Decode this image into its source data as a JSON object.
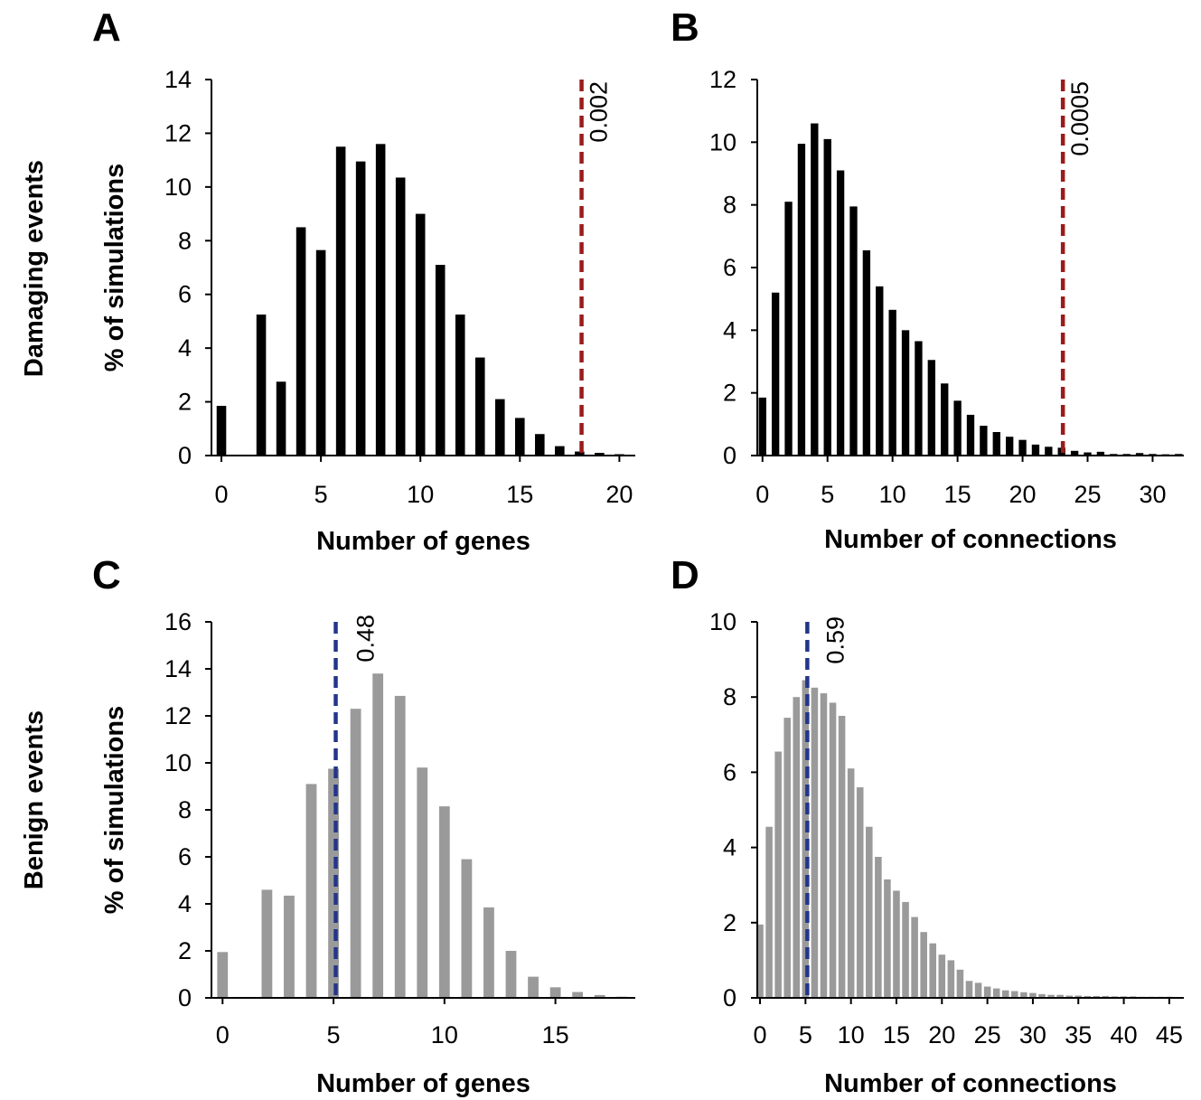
{
  "row_labels": [
    "Damaging events",
    "Benign events"
  ],
  "chart_data": [
    {
      "panel": "A",
      "type": "bar",
      "xlabel": "Number of genes",
      "ylabel": "% of simulations",
      "xlim": [
        -0.5,
        20.8
      ],
      "ylim": [
        0,
        14
      ],
      "xticks": [
        0,
        5,
        10,
        15,
        20
      ],
      "yticks": [
        0,
        2,
        4,
        6,
        8,
        10,
        12,
        14
      ],
      "grid": false,
      "bar_color": "#000000",
      "x": [
        0,
        1,
        2,
        3,
        4,
        5,
        6,
        7,
        8,
        9,
        10,
        11,
        12,
        13,
        14,
        15,
        16,
        17,
        18,
        19,
        20
      ],
      "values": [
        1.85,
        0,
        5.25,
        2.75,
        8.5,
        7.65,
        11.5,
        10.95,
        11.6,
        10.35,
        9.0,
        7.1,
        5.25,
        3.65,
        2.1,
        1.4,
        0.8,
        0.35,
        0.15,
        0.1,
        0.05
      ],
      "threshold": {
        "x": 18.1,
        "label": "0.002",
        "color": "#9b1b1b"
      }
    },
    {
      "panel": "B",
      "type": "bar",
      "xlabel": "Number of connections",
      "ylabel": "",
      "xlim": [
        -0.4,
        32.4
      ],
      "ylim": [
        0,
        12
      ],
      "xticks": [
        0,
        5,
        10,
        15,
        20,
        25,
        30
      ],
      "yticks": [
        0,
        2,
        4,
        6,
        8,
        10,
        12
      ],
      "grid": false,
      "bar_color": "#000000",
      "x": [
        0,
        1,
        2,
        3,
        4,
        5,
        6,
        7,
        8,
        9,
        10,
        11,
        12,
        13,
        14,
        15,
        16,
        17,
        18,
        19,
        20,
        21,
        22,
        23,
        24,
        25,
        26,
        27,
        28,
        29,
        30,
        31,
        32
      ],
      "values": [
        1.85,
        5.2,
        8.1,
        9.95,
        10.6,
        10.1,
        9.1,
        7.95,
        6.55,
        5.4,
        4.65,
        4.0,
        3.65,
        3.05,
        2.3,
        1.75,
        1.3,
        0.95,
        0.75,
        0.6,
        0.5,
        0.35,
        0.28,
        0.25,
        0.15,
        0.1,
        0.12,
        0.05,
        0.05,
        0.08,
        0.05,
        0.04,
        0.05
      ],
      "threshold": {
        "x": 23.1,
        "label": "0.0005",
        "color": "#9b1b1b"
      }
    },
    {
      "panel": "C",
      "type": "bar",
      "xlabel": "Number of genes",
      "ylabel": "% of simulations",
      "xlim": [
        -0.5,
        18.6
      ],
      "ylim": [
        0,
        16
      ],
      "xticks": [
        0,
        5,
        10,
        15
      ],
      "yticks": [
        0,
        2,
        4,
        6,
        8,
        10,
        12,
        14,
        16
      ],
      "grid": false,
      "bar_color": "#9a9a9a",
      "x": [
        0,
        1,
        2,
        3,
        4,
        5,
        6,
        7,
        8,
        9,
        10,
        11,
        12,
        13,
        14,
        15,
        16,
        17,
        18
      ],
      "values": [
        1.95,
        0,
        4.6,
        4.35,
        9.1,
        9.75,
        12.3,
        13.8,
        12.85,
        9.8,
        8.15,
        5.9,
        3.85,
        2.0,
        0.9,
        0.45,
        0.25,
        0.12,
        0.05
      ],
      "threshold": {
        "x": 5.1,
        "label": "0.48",
        "color": "#23368c"
      }
    },
    {
      "panel": "D",
      "type": "bar",
      "xlabel": "Number of connections",
      "ylabel": "",
      "xlim": [
        -0.3,
        46.6
      ],
      "ylim": [
        0,
        10
      ],
      "xticks": [
        0,
        5,
        10,
        15,
        20,
        25,
        30,
        35,
        40,
        45
      ],
      "yticks": [
        0,
        2,
        4,
        6,
        8,
        10
      ],
      "grid": false,
      "bar_color": "#9a9a9a",
      "x": [
        0,
        1,
        2,
        3,
        4,
        5,
        6,
        7,
        8,
        9,
        10,
        11,
        12,
        13,
        14,
        15,
        16,
        17,
        18,
        19,
        20,
        21,
        22,
        23,
        24,
        25,
        26,
        27,
        28,
        29,
        30,
        31,
        32,
        33,
        34,
        35,
        36,
        37,
        38,
        39,
        40,
        41,
        42,
        43,
        44,
        45,
        46
      ],
      "values": [
        1.95,
        4.55,
        6.55,
        7.45,
        8.0,
        8.45,
        8.25,
        8.1,
        7.85,
        7.5,
        6.1,
        5.6,
        4.55,
        3.75,
        3.15,
        2.85,
        2.55,
        2.15,
        1.75,
        1.45,
        1.15,
        1.0,
        0.75,
        0.45,
        0.4,
        0.3,
        0.25,
        0.2,
        0.18,
        0.15,
        0.13,
        0.1,
        0.08,
        0.08,
        0.06,
        0.06,
        0.05,
        0.05,
        0.05,
        0.04,
        0.04,
        0.04,
        0.03,
        0.03,
        0.03,
        0.03,
        0.02
      ],
      "threshold": {
        "x": 5.2,
        "label": "0.59",
        "color": "#23368c"
      }
    }
  ]
}
